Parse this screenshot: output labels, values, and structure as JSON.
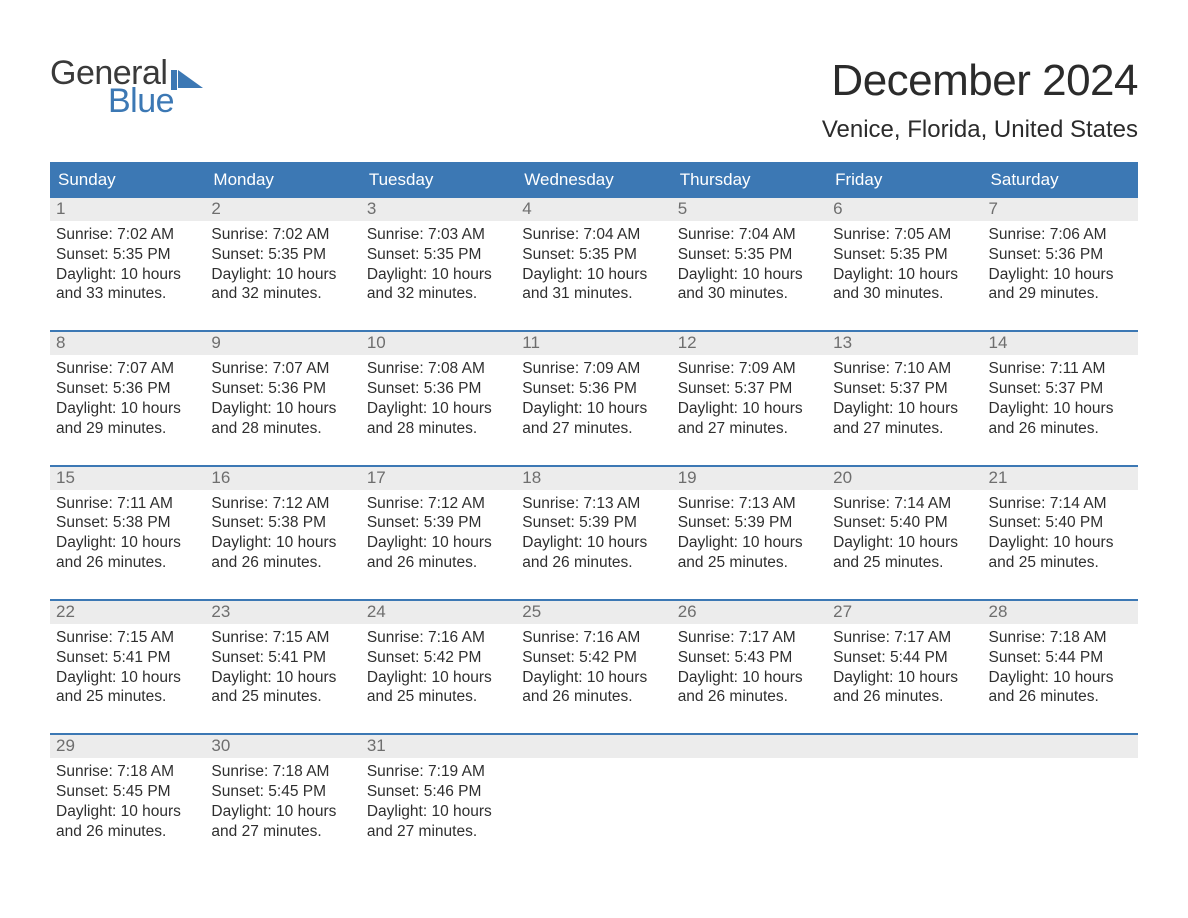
{
  "colors": {
    "brand_blue": "#3c78b4",
    "text": "#2b2b2b",
    "muted_text": "#6e6e6e",
    "daynum_bg": "#ececec",
    "page_bg": "#ffffff",
    "week_divider": "#3c78b4"
  },
  "logo": {
    "line1": "General",
    "line2": "Blue"
  },
  "header": {
    "month_title": "December 2024",
    "location": "Venice, Florida, United States"
  },
  "calendar": {
    "day_labels": [
      "Sunday",
      "Monday",
      "Tuesday",
      "Wednesday",
      "Thursday",
      "Friday",
      "Saturday"
    ],
    "cell_font_size_pt": 12,
    "header_font_size_pt": 13,
    "weeks": [
      [
        {
          "n": 1,
          "sunrise": "7:02 AM",
          "sunset": "5:35 PM",
          "daylight": "10 hours and 33 minutes."
        },
        {
          "n": 2,
          "sunrise": "7:02 AM",
          "sunset": "5:35 PM",
          "daylight": "10 hours and 32 minutes."
        },
        {
          "n": 3,
          "sunrise": "7:03 AM",
          "sunset": "5:35 PM",
          "daylight": "10 hours and 32 minutes."
        },
        {
          "n": 4,
          "sunrise": "7:04 AM",
          "sunset": "5:35 PM",
          "daylight": "10 hours and 31 minutes."
        },
        {
          "n": 5,
          "sunrise": "7:04 AM",
          "sunset": "5:35 PM",
          "daylight": "10 hours and 30 minutes."
        },
        {
          "n": 6,
          "sunrise": "7:05 AM",
          "sunset": "5:35 PM",
          "daylight": "10 hours and 30 minutes."
        },
        {
          "n": 7,
          "sunrise": "7:06 AM",
          "sunset": "5:36 PM",
          "daylight": "10 hours and 29 minutes."
        }
      ],
      [
        {
          "n": 8,
          "sunrise": "7:07 AM",
          "sunset": "5:36 PM",
          "daylight": "10 hours and 29 minutes."
        },
        {
          "n": 9,
          "sunrise": "7:07 AM",
          "sunset": "5:36 PM",
          "daylight": "10 hours and 28 minutes."
        },
        {
          "n": 10,
          "sunrise": "7:08 AM",
          "sunset": "5:36 PM",
          "daylight": "10 hours and 28 minutes."
        },
        {
          "n": 11,
          "sunrise": "7:09 AM",
          "sunset": "5:36 PM",
          "daylight": "10 hours and 27 minutes."
        },
        {
          "n": 12,
          "sunrise": "7:09 AM",
          "sunset": "5:37 PM",
          "daylight": "10 hours and 27 minutes."
        },
        {
          "n": 13,
          "sunrise": "7:10 AM",
          "sunset": "5:37 PM",
          "daylight": "10 hours and 27 minutes."
        },
        {
          "n": 14,
          "sunrise": "7:11 AM",
          "sunset": "5:37 PM",
          "daylight": "10 hours and 26 minutes."
        }
      ],
      [
        {
          "n": 15,
          "sunrise": "7:11 AM",
          "sunset": "5:38 PM",
          "daylight": "10 hours and 26 minutes."
        },
        {
          "n": 16,
          "sunrise": "7:12 AM",
          "sunset": "5:38 PM",
          "daylight": "10 hours and 26 minutes."
        },
        {
          "n": 17,
          "sunrise": "7:12 AM",
          "sunset": "5:39 PM",
          "daylight": "10 hours and 26 minutes."
        },
        {
          "n": 18,
          "sunrise": "7:13 AM",
          "sunset": "5:39 PM",
          "daylight": "10 hours and 26 minutes."
        },
        {
          "n": 19,
          "sunrise": "7:13 AM",
          "sunset": "5:39 PM",
          "daylight": "10 hours and 25 minutes."
        },
        {
          "n": 20,
          "sunrise": "7:14 AM",
          "sunset": "5:40 PM",
          "daylight": "10 hours and 25 minutes."
        },
        {
          "n": 21,
          "sunrise": "7:14 AM",
          "sunset": "5:40 PM",
          "daylight": "10 hours and 25 minutes."
        }
      ],
      [
        {
          "n": 22,
          "sunrise": "7:15 AM",
          "sunset": "5:41 PM",
          "daylight": "10 hours and 25 minutes."
        },
        {
          "n": 23,
          "sunrise": "7:15 AM",
          "sunset": "5:41 PM",
          "daylight": "10 hours and 25 minutes."
        },
        {
          "n": 24,
          "sunrise": "7:16 AM",
          "sunset": "5:42 PM",
          "daylight": "10 hours and 25 minutes."
        },
        {
          "n": 25,
          "sunrise": "7:16 AM",
          "sunset": "5:42 PM",
          "daylight": "10 hours and 26 minutes."
        },
        {
          "n": 26,
          "sunrise": "7:17 AM",
          "sunset": "5:43 PM",
          "daylight": "10 hours and 26 minutes."
        },
        {
          "n": 27,
          "sunrise": "7:17 AM",
          "sunset": "5:44 PM",
          "daylight": "10 hours and 26 minutes."
        },
        {
          "n": 28,
          "sunrise": "7:18 AM",
          "sunset": "5:44 PM",
          "daylight": "10 hours and 26 minutes."
        }
      ],
      [
        {
          "n": 29,
          "sunrise": "7:18 AM",
          "sunset": "5:45 PM",
          "daylight": "10 hours and 26 minutes."
        },
        {
          "n": 30,
          "sunrise": "7:18 AM",
          "sunset": "5:45 PM",
          "daylight": "10 hours and 27 minutes."
        },
        {
          "n": 31,
          "sunrise": "7:19 AM",
          "sunset": "5:46 PM",
          "daylight": "10 hours and 27 minutes."
        },
        null,
        null,
        null,
        null
      ]
    ],
    "labels": {
      "sunrise_prefix": "Sunrise: ",
      "sunset_prefix": "Sunset: ",
      "daylight_prefix": "Daylight: "
    }
  }
}
